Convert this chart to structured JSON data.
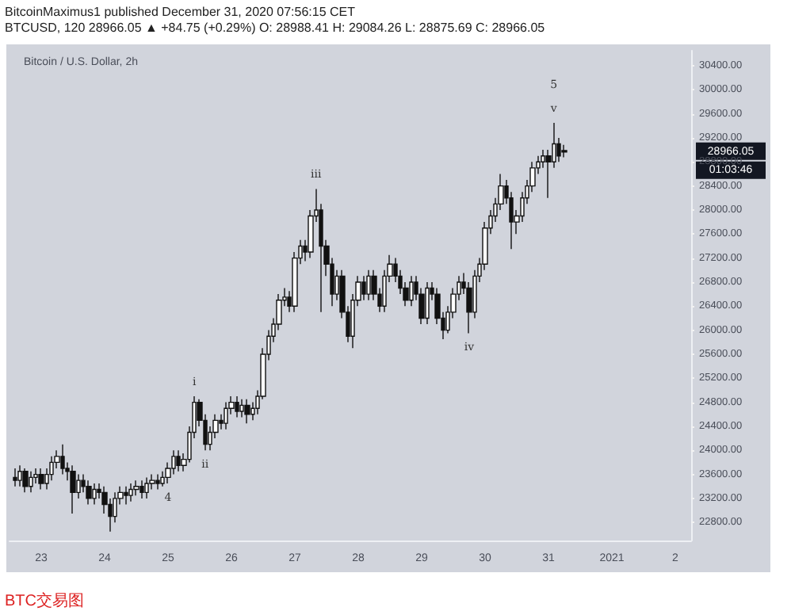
{
  "chart_data": {
    "type": "candlestick",
    "title": "Bitcoin / U.S. Dollar, 2h",
    "x": [
      "2020-12-22T14:00",
      "2020-12-22T16:00",
      "2020-12-22T18:00",
      "2020-12-22T20:00",
      "2020-12-22T22:00",
      "2020-12-23T00:00",
      "2020-12-23T02:00",
      "2020-12-23T04:00",
      "2020-12-23T06:00",
      "2020-12-23T08:00",
      "2020-12-23T10:00",
      "2020-12-23T12:00",
      "2020-12-23T14:00",
      "2020-12-23T16:00",
      "2020-12-23T18:00",
      "2020-12-23T20:00",
      "2020-12-23T22:00",
      "2020-12-24T00:00",
      "2020-12-24T02:00",
      "2020-12-24T04:00",
      "2020-12-24T06:00",
      "2020-12-24T08:00",
      "2020-12-24T10:00",
      "2020-12-24T12:00",
      "2020-12-24T14:00",
      "2020-12-24T16:00",
      "2020-12-24T18:00",
      "2020-12-24T20:00",
      "2020-12-24T22:00",
      "2020-12-25T00:00",
      "2020-12-25T02:00",
      "2020-12-25T04:00",
      "2020-12-25T06:00",
      "2020-12-25T08:00",
      "2020-12-25T10:00",
      "2020-12-25T12:00",
      "2020-12-25T14:00",
      "2020-12-25T16:00",
      "2020-12-25T18:00",
      "2020-12-25T20:00",
      "2020-12-25T22:00",
      "2020-12-26T00:00",
      "2020-12-26T02:00",
      "2020-12-26T04:00",
      "2020-12-26T06:00",
      "2020-12-26T08:00",
      "2020-12-26T10:00",
      "2020-12-26T12:00",
      "2020-12-26T14:00",
      "2020-12-26T16:00",
      "2020-12-26T18:00",
      "2020-12-26T20:00",
      "2020-12-26T22:00",
      "2020-12-27T00:00",
      "2020-12-27T02:00",
      "2020-12-27T04:00",
      "2020-12-27T06:00",
      "2020-12-27T08:00",
      "2020-12-27T10:00",
      "2020-12-27T12:00",
      "2020-12-27T14:00",
      "2020-12-27T16:00",
      "2020-12-27T18:00",
      "2020-12-27T20:00",
      "2020-12-27T22:00",
      "2020-12-28T00:00",
      "2020-12-28T02:00",
      "2020-12-28T04:00",
      "2020-12-28T06:00",
      "2020-12-28T08:00",
      "2020-12-28T10:00",
      "2020-12-28T12:00",
      "2020-12-28T14:00",
      "2020-12-28T16:00",
      "2020-12-28T18:00",
      "2020-12-28T20:00",
      "2020-12-28T22:00",
      "2020-12-29T00:00",
      "2020-12-29T02:00",
      "2020-12-29T04:00",
      "2020-12-29T06:00",
      "2020-12-29T08:00",
      "2020-12-29T10:00",
      "2020-12-29T12:00",
      "2020-12-29T14:00",
      "2020-12-29T16:00",
      "2020-12-29T18:00",
      "2020-12-29T20:00",
      "2020-12-29T22:00",
      "2020-12-30T00:00",
      "2020-12-30T02:00",
      "2020-12-30T04:00",
      "2020-12-30T06:00",
      "2020-12-30T08:00",
      "2020-12-30T10:00",
      "2020-12-30T12:00",
      "2020-12-30T14:00",
      "2020-12-30T16:00",
      "2020-12-30T18:00",
      "2020-12-30T20:00",
      "2020-12-30T22:00",
      "2020-12-31T00:00",
      "2020-12-31T02:00",
      "2020-12-31T04:00",
      "2020-12-31T06:00"
    ],
    "ohlc": [
      [
        23550,
        23700,
        23400,
        23500
      ],
      [
        23500,
        23750,
        23400,
        23650
      ],
      [
        23650,
        23700,
        23300,
        23400
      ],
      [
        23400,
        23650,
        23300,
        23550
      ],
      [
        23550,
        23700,
        23450,
        23600
      ],
      [
        23600,
        23700,
        23350,
        23450
      ],
      [
        23450,
        23700,
        23350,
        23600
      ],
      [
        23600,
        23900,
        23500,
        23800
      ],
      [
        23800,
        24000,
        23700,
        23900
      ],
      [
        23900,
        24100,
        23600,
        23700
      ],
      [
        23700,
        23800,
        23500,
        23650
      ],
      [
        23650,
        23750,
        22950,
        23300
      ],
      [
        23300,
        23600,
        23200,
        23500
      ],
      [
        23500,
        23600,
        23300,
        23400
      ],
      [
        23400,
        23500,
        23100,
        23200
      ],
      [
        23200,
        23450,
        23100,
        23350
      ],
      [
        23350,
        23450,
        23200,
        23300
      ],
      [
        23300,
        23400,
        22950,
        23100
      ],
      [
        23100,
        23200,
        22650,
        22900
      ],
      [
        22900,
        23300,
        22800,
        23200
      ],
      [
        23200,
        23400,
        23100,
        23300
      ],
      [
        23300,
        23400,
        23100,
        23250
      ],
      [
        23250,
        23450,
        23150,
        23350
      ],
      [
        23350,
        23500,
        23250,
        23400
      ],
      [
        23400,
        23500,
        23200,
        23300
      ],
      [
        23300,
        23550,
        23200,
        23450
      ],
      [
        23450,
        23600,
        23350,
        23500
      ],
      [
        23500,
        23600,
        23350,
        23450
      ],
      [
        23450,
        23650,
        23400,
        23550
      ],
      [
        23550,
        23800,
        23450,
        23700
      ],
      [
        23700,
        24000,
        23600,
        23900
      ],
      [
        23900,
        24000,
        23650,
        23750
      ],
      [
        23750,
        23950,
        23650,
        23850
      ],
      [
        23850,
        24400,
        23800,
        24300
      ],
      [
        24300,
        24900,
        24200,
        24800
      ],
      [
        24800,
        24850,
        24400,
        24500
      ],
      [
        24500,
        24600,
        24000,
        24100
      ],
      [
        24100,
        24400,
        24000,
        24300
      ],
      [
        24300,
        24600,
        24200,
        24500
      ],
      [
        24500,
        24600,
        24350,
        24450
      ],
      [
        24450,
        24800,
        24350,
        24700
      ],
      [
        24700,
        24900,
        24600,
        24800
      ],
      [
        24800,
        24900,
        24550,
        24650
      ],
      [
        24650,
        24850,
        24550,
        24750
      ],
      [
        24750,
        24850,
        24450,
        24600
      ],
      [
        24600,
        24800,
        24500,
        24700
      ],
      [
        24700,
        25000,
        24600,
        24900
      ],
      [
        24900,
        25700,
        24850,
        25600
      ],
      [
        25600,
        26000,
        25500,
        25900
      ],
      [
        25900,
        26200,
        25800,
        26100
      ],
      [
        26100,
        26600,
        26000,
        26500
      ],
      [
        26500,
        26700,
        26400,
        26550
      ],
      [
        26550,
        26650,
        26300,
        26400
      ],
      [
        26400,
        27300,
        26300,
        27200
      ],
      [
        27200,
        27500,
        27100,
        27400
      ],
      [
        27400,
        27500,
        27150,
        27300
      ],
      [
        27300,
        28000,
        27200,
        27900
      ],
      [
        27900,
        28350,
        27800,
        28000
      ],
      [
        28000,
        28100,
        26300,
        27400
      ],
      [
        27400,
        27500,
        26900,
        27100
      ],
      [
        27100,
        27200,
        26400,
        26600
      ],
      [
        26600,
        27000,
        26500,
        26900
      ],
      [
        26900,
        27000,
        26200,
        26300
      ],
      [
        26300,
        26400,
        25800,
        25900
      ],
      [
        25900,
        26600,
        25700,
        26500
      ],
      [
        26500,
        26900,
        26400,
        26800
      ],
      [
        26800,
        26900,
        26500,
        26600
      ],
      [
        26600,
        27000,
        26500,
        26900
      ],
      [
        26900,
        27000,
        26500,
        26600
      ],
      [
        26600,
        26700,
        26300,
        26400
      ],
      [
        26400,
        27000,
        26300,
        26900
      ],
      [
        26900,
        27250,
        26800,
        27100
      ],
      [
        27100,
        27200,
        26800,
        26900
      ],
      [
        26900,
        27000,
        26600,
        26700
      ],
      [
        26700,
        26800,
        26400,
        26500
      ],
      [
        26500,
        26900,
        26400,
        26800
      ],
      [
        26800,
        26900,
        26500,
        26600
      ],
      [
        26600,
        26700,
        26100,
        26200
      ],
      [
        26200,
        26800,
        26100,
        26700
      ],
      [
        26700,
        26800,
        26500,
        26600
      ],
      [
        26600,
        26700,
        26100,
        26200
      ],
      [
        26200,
        26300,
        25850,
        26000
      ],
      [
        26000,
        26400,
        25950,
        26300
      ],
      [
        26300,
        26700,
        26200,
        26600
      ],
      [
        26600,
        26900,
        26500,
        26800
      ],
      [
        26800,
        26950,
        26600,
        26700
      ],
      [
        26700,
        26800,
        25950,
        26300
      ],
      [
        26300,
        27000,
        26200,
        26900
      ],
      [
        26900,
        27200,
        26800,
        27100
      ],
      [
        27100,
        27800,
        27000,
        27700
      ],
      [
        27700,
        28000,
        27600,
        27900
      ],
      [
        27900,
        28200,
        27800,
        28100
      ],
      [
        28100,
        28600,
        28000,
        28400
      ],
      [
        28400,
        28500,
        28100,
        28200
      ],
      [
        28200,
        28300,
        27350,
        27800
      ],
      [
        27800,
        28000,
        27600,
        27900
      ],
      [
        27900,
        28300,
        27800,
        28200
      ],
      [
        28200,
        28500,
        28100,
        28400
      ],
      [
        28400,
        28800,
        28300,
        28700
      ],
      [
        28700,
        28900,
        28600,
        28800
      ],
      [
        28800,
        29000,
        28700,
        28900
      ],
      [
        28900,
        29000,
        28200,
        28800
      ],
      [
        28800,
        29450,
        28700,
        29100
      ],
      [
        29100,
        29200,
        28800,
        28900
      ],
      [
        28988.41,
        29084.26,
        28875.69,
        28966.05
      ]
    ],
    "xlim": [
      "2020-12-22T12:00",
      "2021-01-02T06:00"
    ],
    "xticks": [
      {
        "value": "2020-12-23",
        "label": "23"
      },
      {
        "value": "2020-12-24",
        "label": "24"
      },
      {
        "value": "2020-12-25",
        "label": "25"
      },
      {
        "value": "2020-12-26",
        "label": "26"
      },
      {
        "value": "2020-12-27",
        "label": "27"
      },
      {
        "value": "2020-12-28",
        "label": "28"
      },
      {
        "value": "2020-12-29",
        "label": "29"
      },
      {
        "value": "2020-12-30",
        "label": "30"
      },
      {
        "value": "2020-12-31",
        "label": "31"
      },
      {
        "value": "2021-01-01",
        "label": "2021"
      },
      {
        "value": "2021-01-02",
        "label": "2"
      }
    ],
    "ylim": [
      22500,
      30650
    ],
    "yticks": [
      {
        "value": 22800,
        "label": "22800.00"
      },
      {
        "value": 23200,
        "label": "23200.00"
      },
      {
        "value": 23600,
        "label": "23600.00"
      },
      {
        "value": 24000,
        "label": "24000.00"
      },
      {
        "value": 24400,
        "label": "24400.00"
      },
      {
        "value": 24800,
        "label": "24800.00"
      },
      {
        "value": 25200,
        "label": "25200.00"
      },
      {
        "value": 25600,
        "label": "25600.00"
      },
      {
        "value": 26000,
        "label": "26000.00"
      },
      {
        "value": 26400,
        "label": "26400.00"
      },
      {
        "value": 26800,
        "label": "26800.00"
      },
      {
        "value": 27200,
        "label": "27200.00"
      },
      {
        "value": 27600,
        "label": "27600.00"
      },
      {
        "value": 28000,
        "label": "28000.00"
      },
      {
        "value": 28400,
        "label": "28400.00"
      },
      {
        "value": 28800,
        "label": "28800.00"
      },
      {
        "value": 29200,
        "label": "29200.00"
      },
      {
        "value": 29600,
        "label": "29600.00"
      },
      {
        "value": 30000,
        "label": "30000.00"
      },
      {
        "value": 30400,
        "label": "30400.00"
      }
    ],
    "annotations": [
      "BitcoinMaximus1 published December 31, 2020 07:56:15 CET",
      "BTCUSD, 120  28966.05 ▲ +84.75 (+0.29%) O: 28988.41 H: 29084.26 L: 28875.69 C: 28966.05",
      "28966.05",
      "01:03:46",
      "BTC交易图",
      {
        "text": "i",
        "x": "2020-12-25T10:00",
        "y": 24900
      },
      {
        "text": "ii",
        "x": "2020-12-25T14:00",
        "y": 24000
      },
      {
        "text": "iii",
        "x": "2020-12-27T08:00",
        "y": 28350
      },
      {
        "text": "iv",
        "x": "2020-12-29T18:00",
        "y": 25950
      },
      {
        "text": "v",
        "x": "2020-12-31T02:00",
        "y": 29450
      },
      {
        "text": "4",
        "x": "2020-12-25T00:00",
        "y": 23450
      },
      {
        "text": "5",
        "x": "2020-12-31T02:00",
        "y": 29450
      }
    ]
  }
}
